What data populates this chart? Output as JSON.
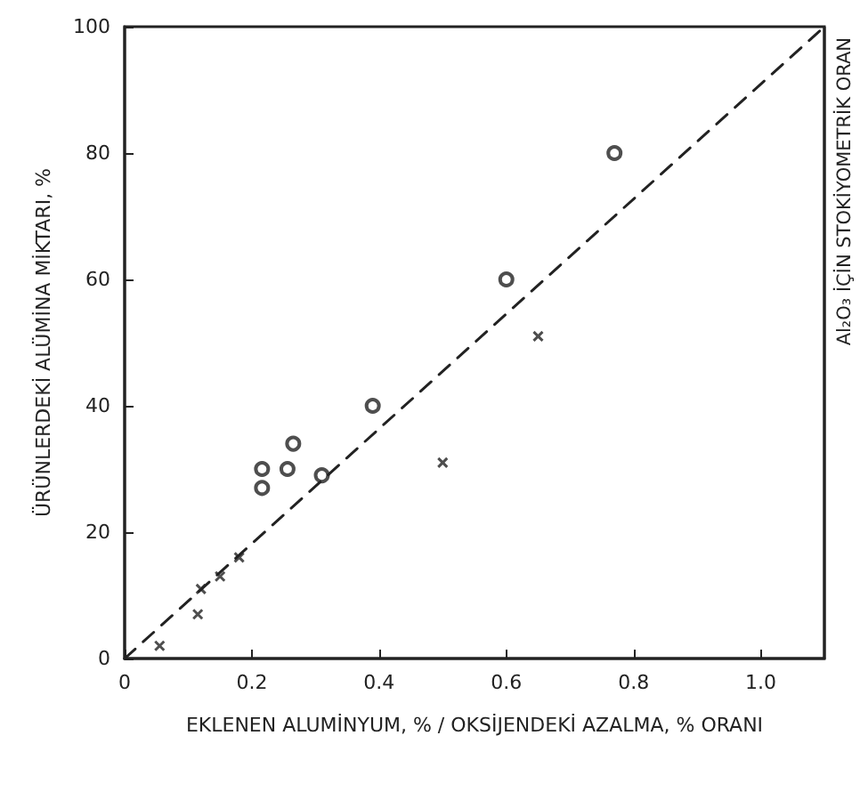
{
  "chart_data": {
    "type": "scatter",
    "xlabel": "EKLENEN ALUMİNYUM, % / OKSİJENDEKİ AZALMA, % ORANI",
    "ylabel": "ÜRÜNLERDEKİ ALÜMİNA MİKTARI, %",
    "xlim": [
      0,
      1.1
    ],
    "xticks": [
      0,
      0.2,
      0.4,
      0.6,
      0.8,
      {
        "value": 1.0,
        "label": "1.0"
      }
    ],
    "ylim": [
      0,
      100
    ],
    "yticks": [
      0,
      20,
      40,
      60,
      80,
      100
    ],
    "grid": false,
    "series": [
      {
        "type": "scatter",
        "marker": "circle",
        "color": "#222222",
        "x": [
          0.77,
          0.6,
          0.39,
          0.265,
          0.256,
          0.216,
          0.216,
          0.31
        ],
        "values": [
          80,
          60,
          40,
          34,
          30,
          30,
          27,
          29
        ]
      },
      {
        "type": "scatter",
        "marker": "cross",
        "color": "#222222",
        "x": [
          0.65,
          0.5,
          0.18,
          0.15,
          0.12,
          0.115,
          0.055
        ],
        "values": [
          51,
          31,
          16,
          13,
          11,
          7,
          2
        ]
      },
      {
        "type": "line",
        "marker": "none",
        "line_style": "dashed",
        "color": "#222222",
        "x": [
          0,
          1.1
        ],
        "values": [
          0,
          100
        ]
      }
    ],
    "ref_lines": [
      {
        "axis": "x",
        "value": 1.1,
        "label": "Al₂O₃ İÇİN STOKİYOMETRİK ORAN",
        "color": "#222222",
        "line_style": "solid"
      }
    ]
  }
}
